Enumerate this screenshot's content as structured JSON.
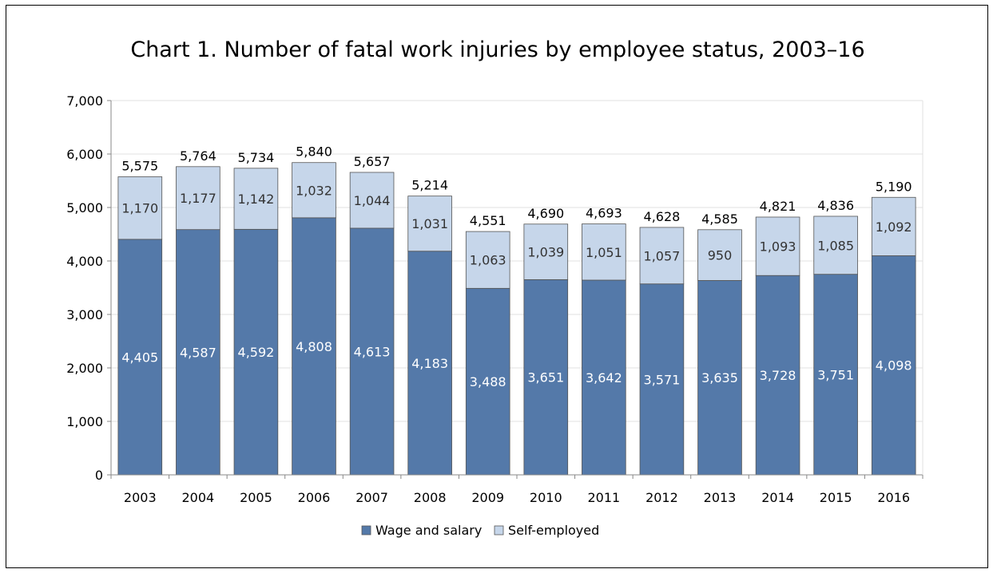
{
  "chart_data": {
    "type": "bar",
    "stacked": true,
    "title": "Chart 1. Number of fatal work injuries by employee status, 2003–16",
    "categories": [
      "2003",
      "2004",
      "2005",
      "2006",
      "2007",
      "2008",
      "2009",
      "2010",
      "2011",
      "2012",
      "2013",
      "2014",
      "2015",
      "2016"
    ],
    "series": [
      {
        "name": "Wage and salary",
        "color": "#5479a9",
        "values": [
          4405,
          4587,
          4592,
          4808,
          4613,
          4183,
          3488,
          3651,
          3642,
          3571,
          3635,
          3728,
          3751,
          4098
        ],
        "labels": [
          "4,405",
          "4,587",
          "4,592",
          "4,808",
          "4,613",
          "4,183",
          "3,488",
          "3,651",
          "3,642",
          "3,571",
          "3,635",
          "3,728",
          "3,751",
          "4,098"
        ]
      },
      {
        "name": "Self-employed",
        "color": "#c6d6ea",
        "values": [
          1170,
          1177,
          1142,
          1032,
          1044,
          1031,
          1063,
          1039,
          1051,
          1057,
          950,
          1093,
          1085,
          1092
        ],
        "labels": [
          "1,170",
          "1,177",
          "1,142",
          "1,032",
          "1,044",
          "1,031",
          "1,063",
          "1,039",
          "1,051",
          "1,057",
          "950",
          "1,093",
          "1,085",
          "1,092"
        ]
      }
    ],
    "totals": [
      5575,
      5764,
      5734,
      5840,
      5657,
      5214,
      4551,
      4690,
      4693,
      4628,
      4585,
      4821,
      4836,
      5190
    ],
    "total_labels": [
      "5,575",
      "5,764",
      "5,734",
      "5,840",
      "5,657",
      "5,214",
      "4,551",
      "4,690",
      "4,693",
      "4,628",
      "4,585",
      "4,821",
      "4,836",
      "5,190"
    ],
    "ylim": [
      0,
      7000
    ],
    "y_ticks": [
      0,
      1000,
      2000,
      3000,
      4000,
      5000,
      6000,
      7000
    ],
    "y_tick_labels": [
      "0",
      "1,000",
      "2,000",
      "3,000",
      "4,000",
      "5,000",
      "6,000",
      "7,000"
    ],
    "grid": true,
    "gridline_color": "#e0e0e0",
    "legend_position": "bottom"
  }
}
